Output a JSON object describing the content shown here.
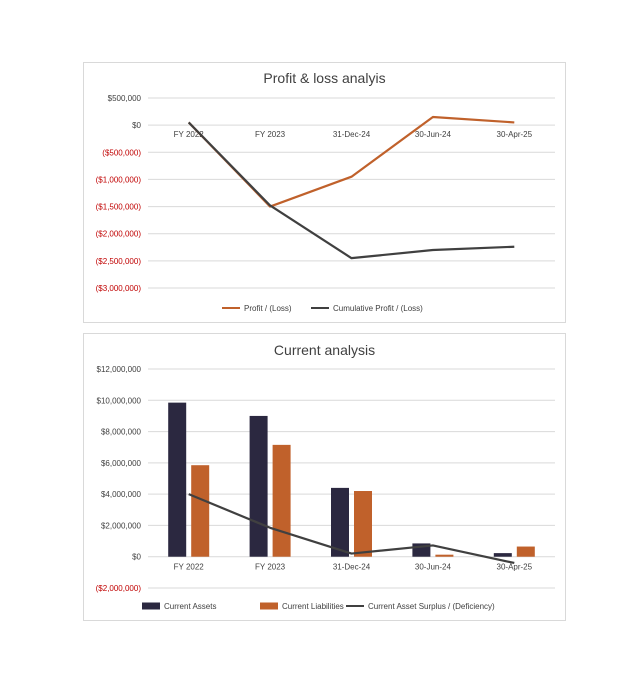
{
  "colors": {
    "profit": "#c0612b",
    "cumulative": "#404040",
    "assets": "#2b2840",
    "liabilities": "#c0612b",
    "surplus": "#404040",
    "negative_tick": "#c00000",
    "positive_tick": "#404040",
    "grid": "#d9d9d9"
  },
  "chart_data": [
    {
      "type": "line",
      "title": "Profit & loss analyis",
      "categories": [
        "FY 2022",
        "FY 2023",
        "31-Dec-24",
        "30-Jun-24",
        "30-Apr-25"
      ],
      "y_ticks": [
        "$500,000",
        "$0",
        "($500,000)",
        "($1,000,000)",
        "($1,500,000)",
        "($2,000,000)",
        "($2,500,000)",
        "($3,000,000)"
      ],
      "ylim": [
        -3000000,
        500000
      ],
      "series": [
        {
          "name": "Profit / (Loss)",
          "values": [
            50000,
            -1500000,
            -950000,
            150000,
            50000
          ]
        },
        {
          "name": "Cumulative Profit / (Loss)",
          "values": [
            50000,
            -1480000,
            -2450000,
            -2300000,
            -2240000
          ]
        }
      ],
      "grid": true,
      "legend": "bottom"
    },
    {
      "type": "bar",
      "title": "Current analysis",
      "categories": [
        "FY 2022",
        "FY 2023",
        "31-Dec-24",
        "30-Jun-24",
        "30-Apr-25"
      ],
      "y_ticks": [
        "$12,000,000",
        "$10,000,000",
        "$8,000,000",
        "$6,000,000",
        "$4,000,000",
        "$2,000,000",
        "$0",
        "($2,000,000)"
      ],
      "ylim": [
        -2000000,
        12000000
      ],
      "series": [
        {
          "name": "Current Assets",
          "kind": "bar",
          "values": [
            9850000,
            9000000,
            4400000,
            850000,
            230000
          ]
        },
        {
          "name": "Current Liabilities",
          "kind": "bar",
          "values": [
            5850000,
            7150000,
            4200000,
            130000,
            650000
          ]
        },
        {
          "name": "Current Asset Surplus / (Deficiency)",
          "kind": "line",
          "values": [
            4000000,
            1850000,
            200000,
            720000,
            -400000
          ]
        }
      ],
      "grid": true,
      "legend": "bottom"
    }
  ]
}
